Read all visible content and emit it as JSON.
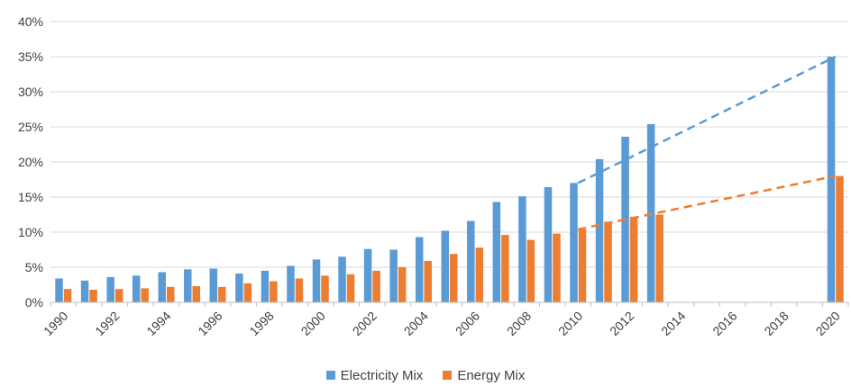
{
  "chart_data": {
    "type": "bar",
    "title": "",
    "xlabel": "",
    "ylabel": "",
    "ylim": [
      0,
      40
    ],
    "y_ticks": [
      "0%",
      "5%",
      "10%",
      "15%",
      "20%",
      "25%",
      "30%",
      "35%",
      "40%"
    ],
    "x_ticks": [
      "1990",
      "1992",
      "1994",
      "1996",
      "1998",
      "2000",
      "2002",
      "2004",
      "2006",
      "2008",
      "2010",
      "2012",
      "2014",
      "2016",
      "2018",
      "2020"
    ],
    "categories": [
      1990,
      1991,
      1992,
      1993,
      1994,
      1995,
      1996,
      1997,
      1998,
      1999,
      2000,
      2001,
      2002,
      2003,
      2004,
      2005,
      2006,
      2007,
      2008,
      2009,
      2010,
      2011,
      2012,
      2013,
      2014,
      2015,
      2016,
      2017,
      2018,
      2019,
      2020
    ],
    "grid": "horizontal",
    "legend_position": "bottom",
    "series": [
      {
        "name": "Electricity Mix",
        "color": "#5B9BD5",
        "values": [
          3.4,
          3.1,
          3.6,
          3.8,
          4.3,
          4.7,
          4.8,
          4.1,
          4.5,
          5.2,
          6.1,
          6.5,
          7.6,
          7.5,
          9.3,
          10.2,
          11.6,
          14.3,
          15.1,
          16.4,
          17.0,
          20.4,
          23.6,
          25.4,
          null,
          null,
          null,
          null,
          null,
          null,
          35.0
        ]
      },
      {
        "name": "Energy Mix",
        "color": "#ED7D31",
        "values": [
          1.9,
          1.8,
          1.9,
          2.0,
          2.2,
          2.3,
          2.2,
          2.7,
          3.0,
          3.4,
          3.8,
          4.0,
          4.5,
          5.0,
          5.9,
          6.9,
          7.8,
          9.6,
          8.9,
          9.8,
          10.4,
          11.5,
          12.2,
          12.5,
          null,
          null,
          null,
          null,
          null,
          null,
          18.0
        ]
      }
    ],
    "trend_lines": [
      {
        "series": "Electricity Mix",
        "style": "dashed",
        "color": "#5B9BD5",
        "from": [
          2010,
          17.0
        ],
        "to": [
          2020,
          35.0
        ]
      },
      {
        "series": "Energy Mix",
        "style": "dashed",
        "color": "#ED7D31",
        "from": [
          2010,
          10.4
        ],
        "to": [
          2020,
          18.0
        ]
      }
    ]
  }
}
